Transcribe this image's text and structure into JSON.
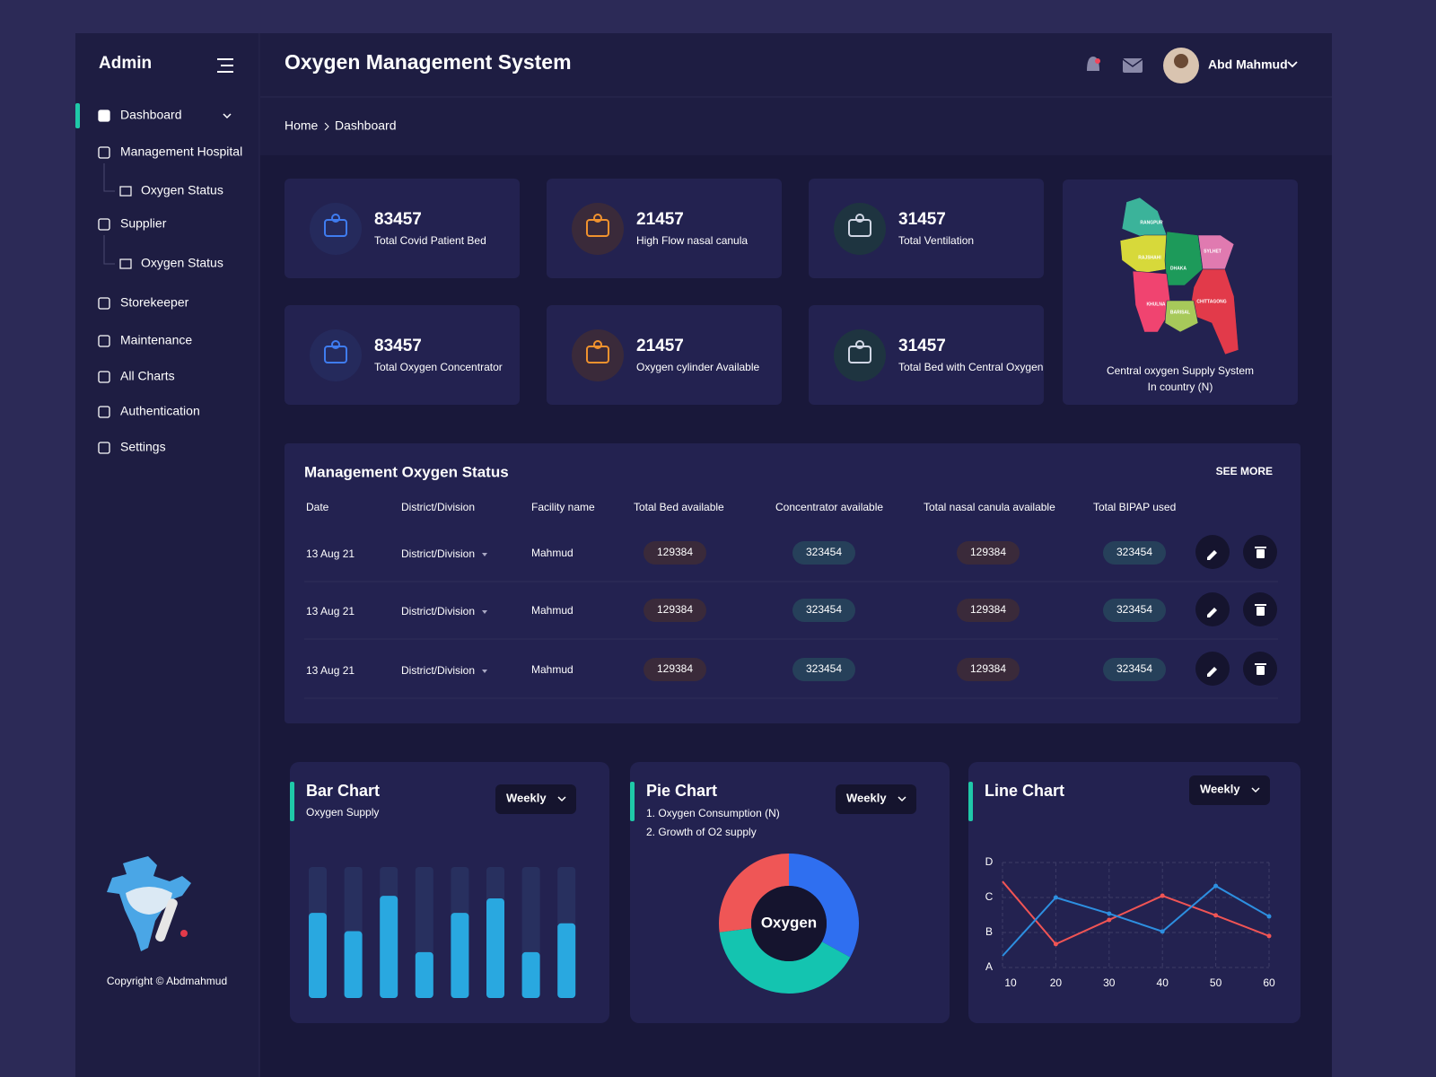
{
  "sidebar": {
    "brand": "Admin",
    "menu": [
      {
        "label": "Dashboard"
      },
      {
        "label": "Management Hospital",
        "sub": [
          "Oxygen Status"
        ]
      },
      {
        "label": "Supplier",
        "sub": [
          "Oxygen Status"
        ]
      },
      {
        "label": "Storekeeper"
      },
      {
        "label": "Maintenance"
      },
      {
        "label": "All Charts"
      },
      {
        "label": "Authentication"
      },
      {
        "label": "Settings"
      }
    ],
    "copyright": "Copyright © Abdmahmud"
  },
  "header": {
    "title": "Oxygen Management System",
    "user": "Abd Mahmud"
  },
  "breadcrumb": [
    "Home",
    "Dashboard"
  ],
  "stats": [
    {
      "value": 83457,
      "label": "Total Covid Patient Bed",
      "color": "#3f7cf0"
    },
    {
      "value": 21457,
      "label": "High Flow nasal canula",
      "color": "#f0922e"
    },
    {
      "value": 31457,
      "label": "Total  Ventilation",
      "color": "#d0d6e4"
    },
    {
      "value": 83457,
      "label": "Total Oxygen Concentrator",
      "color": "#3f7cf0"
    },
    {
      "value": 21457,
      "label": "Oxygen cylinder Available",
      "color": "#f0922e"
    },
    {
      "value": 31457,
      "label": "Total Bed with Central Oxygen",
      "color": "#d0d6e4"
    }
  ],
  "map": {
    "regions": [
      "RANGPUR",
      "RAJSHAHI",
      "DHAKA",
      "SYLHET",
      "CHITTAGONG",
      "KHULNA",
      "BARISAL"
    ],
    "caption": [
      "Central oxygen Supply System",
      "In country (N)"
    ]
  },
  "table": {
    "title": "Management Oxygen Status",
    "see_more": "SEE MORE",
    "columns": [
      "Date",
      "District/Division",
      "Facility name",
      "Total Bed available",
      "Concentrator available",
      "Total nasal canula available",
      "Total BIPAP used"
    ],
    "rows": [
      [
        "13 Aug 21",
        "District/Division",
        "Mahmud",
        129384,
        323454,
        129384,
        323454
      ],
      [
        "13 Aug 21",
        "District/Division",
        "Mahmud",
        129384,
        323454,
        129384,
        323454
      ],
      [
        "13 Aug 21",
        "District/Division",
        "Mahmud",
        129384,
        323454,
        129384,
        323454
      ]
    ]
  },
  "chart_data": [
    {
      "type": "bar",
      "title": "Bar Chart",
      "subtitle": "Oxygen Supply",
      "dropdown": "Weekly",
      "values": [
        65,
        51,
        78,
        35,
        65,
        76,
        35,
        57
      ],
      "ylim": [
        0,
        100
      ],
      "color": "#29a8e0",
      "track_color": "#28305f"
    },
    {
      "type": "pie",
      "title": "Pie Chart",
      "subtitle_lines": [
        "1. Oxygen Consumption (N)",
        "2. Growth of O2 supply"
      ],
      "dropdown": "Weekly",
      "center_label": "Oxygen",
      "values": [
        33,
        40,
        27
      ],
      "colors": [
        "#2f6ff0",
        "#14c4b0",
        "#ef5656"
      ]
    },
    {
      "type": "line",
      "title": "Line Chart",
      "dropdown": "Weekly",
      "x": [
        10,
        20,
        30,
        40,
        50,
        60
      ],
      "xlim": [
        10,
        60
      ],
      "xticks": [
        10,
        20,
        30,
        40,
        50,
        60
      ],
      "ylim": [
        1,
        4
      ],
      "yticks": [
        {
          "value": 1,
          "label": "A"
        },
        {
          "value": 2,
          "label": "B"
        },
        {
          "value": 3,
          "label": "C"
        },
        {
          "value": 4,
          "label": "D"
        }
      ],
      "grid": true,
      "series": [
        {
          "color": "#f05454",
          "values": [
            3.46,
            1.67,
            2.36,
            3.05,
            2.49,
            1.9
          ]
        },
        {
          "color": "#2d8fe0",
          "values": [
            1.33,
            3.0,
            2.54,
            2.03,
            3.33,
            2.46
          ]
        }
      ]
    }
  ]
}
